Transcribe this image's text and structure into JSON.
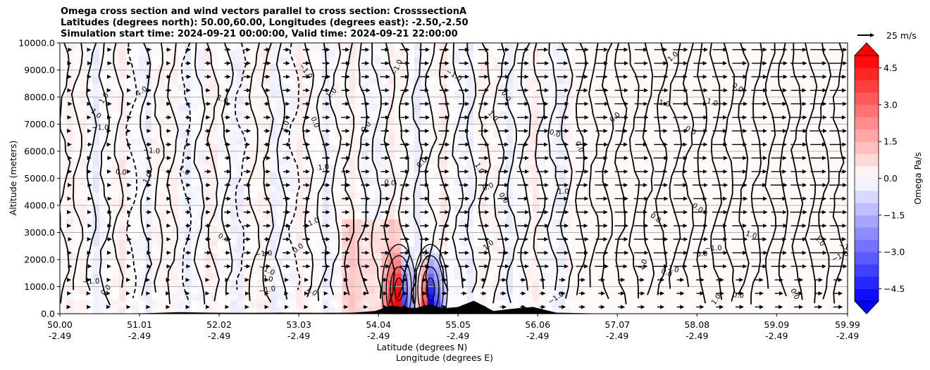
{
  "chart_data": {
    "type": "heatmap",
    "title_lines": [
      "Omega cross section and wind vectors parallel to cross section: CrosssectionA",
      "Latitudes (degrees north): 50.00,60.00, Longitudes (degrees east): -2.50,-2.50",
      "Simulation start time: 2024-09-21 00:00:00, Valid time: 2024-09-21 22:00:00"
    ],
    "ylabel": "Altitude (meters)",
    "xlabel_lat": "Latitude (degrees N)",
    "xlabel_lon": "Longitude (degrees E)",
    "ylim": [
      0,
      10000
    ],
    "y_ticks": [
      "0.0",
      "1000.0",
      "2000.0",
      "3000.0",
      "4000.0",
      "5000.0",
      "6000.0",
      "7000.0",
      "8000.0",
      "9000.0",
      "10000.0"
    ],
    "x_ticks_lat": [
      "50.00",
      "51.01",
      "52.02",
      "53.03",
      "54.04",
      "55.05",
      "56.06",
      "57.07",
      "58.08",
      "59.09",
      "59.99"
    ],
    "x_ticks_lon": [
      "-2.49",
      "-2.49",
      "-2.49",
      "-2.49",
      "-2.49",
      "-2.49",
      "-2.49",
      "-2.49",
      "-2.49",
      "-2.49",
      "-2.49"
    ],
    "x_tick_values": [
      50.0,
      51.01,
      52.02,
      53.03,
      54.04,
      55.05,
      56.06,
      57.07,
      58.08,
      59.09,
      59.99
    ],
    "xlim": [
      50.0,
      59.99
    ],
    "grid": "horizontal",
    "colorbar": {
      "label": "Omega Pa/s",
      "range": [
        -5.0,
        5.0
      ],
      "ticks": [
        "4.5",
        "3.0",
        "1.5",
        "0.0",
        "−1.5",
        "−3.0",
        "−4.5"
      ],
      "tick_values": [
        4.5,
        3.0,
        1.5,
        0.0,
        -1.5,
        -3.0,
        -4.5
      ],
      "extend": "both",
      "colormap": "bwr"
    },
    "wind_key": {
      "label": "25 m/s",
      "speed": 25
    },
    "contour_labels": [
      "0.0",
      "1.0",
      "−1.0",
      "2.0",
      "−2.0"
    ],
    "features": [
      {
        "kind": "strong_ascent_descent",
        "lat": 54.3,
        "omega_max": 4.5,
        "omega_min": -4.5
      },
      {
        "kind": "strong_ascent_descent",
        "lat": 54.7,
        "omega_max": 4.5,
        "omega_min": -4.5
      }
    ],
    "terrain": [
      {
        "lat": 50.0,
        "alt": 0
      },
      {
        "lat": 50.6,
        "alt": 0
      },
      {
        "lat": 51.1,
        "alt": 20
      },
      {
        "lat": 51.5,
        "alt": 60
      },
      {
        "lat": 51.9,
        "alt": 40
      },
      {
        "lat": 52.3,
        "alt": 30
      },
      {
        "lat": 52.8,
        "alt": 40
      },
      {
        "lat": 53.3,
        "alt": 30
      },
      {
        "lat": 53.7,
        "alt": 40
      },
      {
        "lat": 54.0,
        "alt": 100
      },
      {
        "lat": 54.2,
        "alt": 300
      },
      {
        "lat": 54.35,
        "alt": 250
      },
      {
        "lat": 54.5,
        "alt": 200
      },
      {
        "lat": 54.7,
        "alt": 350
      },
      {
        "lat": 54.85,
        "alt": 200
      },
      {
        "lat": 55.05,
        "alt": 250
      },
      {
        "lat": 55.25,
        "alt": 480
      },
      {
        "lat": 55.5,
        "alt": 100
      },
      {
        "lat": 55.8,
        "alt": 200
      },
      {
        "lat": 56.0,
        "alt": 250
      },
      {
        "lat": 56.3,
        "alt": 40
      },
      {
        "lat": 57.0,
        "alt": 0
      },
      {
        "lat": 59.99,
        "alt": 0
      }
    ]
  }
}
